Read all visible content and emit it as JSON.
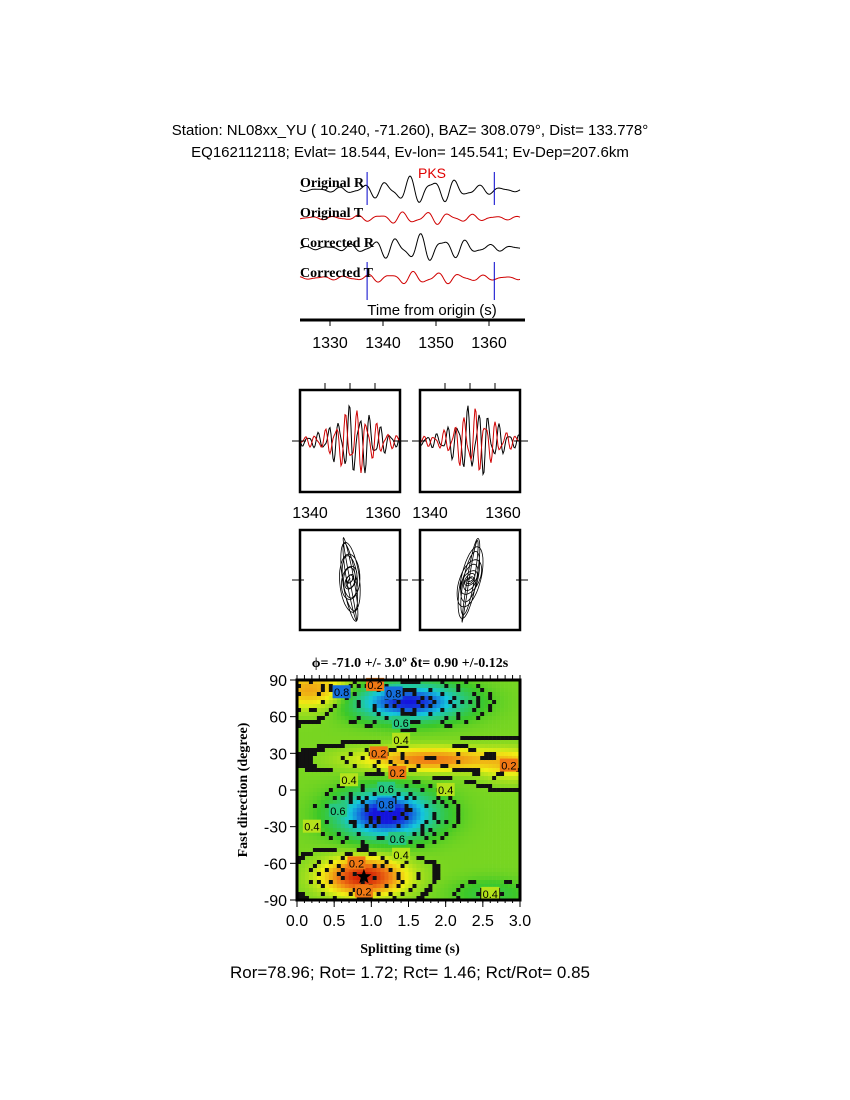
{
  "header": {
    "line1": "Station: NL08xx_YU (  10.240,  -71.260), BAZ=  308.079°, Dist=  133.778°",
    "line2": "EQ162112118; Evlat=  18.544, Ev-lon= 145.541; Ev-Dep=207.6km"
  },
  "colors": {
    "radial": "#000000",
    "transverse": "#d00000",
    "marker": "#0000cc",
    "phase": "#e00000"
  },
  "chart_data": [
    {
      "type": "line",
      "phase_label": "PKS",
      "traces": [
        "Original R",
        "Original T",
        "Corrected R",
        "Corrected T"
      ],
      "xlabel": "Time from origin (s)",
      "xticks": [
        1330,
        1340,
        1350,
        1360
      ],
      "xlim": [
        1324,
        1367
      ],
      "window_markers": [
        1337,
        1361
      ]
    },
    {
      "type": "line",
      "panel": "original waveforms R/T",
      "xticks": [
        1340,
        1360
      ]
    },
    {
      "type": "line",
      "panel": "corrected waveforms R/T",
      "xticks": [
        1340,
        1360
      ]
    },
    {
      "type": "scatter",
      "panel": "original particle motion"
    },
    {
      "type": "scatter",
      "panel": "corrected particle motion"
    },
    {
      "type": "heatmap",
      "title": "ϕ= -71.0 +/- 3.0º δt= 0.90 +/-0.12s",
      "xlabel": "Splitting time (s)",
      "ylabel": "Fast direction (degree)",
      "xlim": [
        0,
        3
      ],
      "ylim": [
        -90,
        90
      ],
      "xticks": [
        "0.0",
        "0.5",
        "1.0",
        "1.5",
        "2.0",
        "2.5",
        "3.0"
      ],
      "yticks": [
        "90",
        "60",
        "30",
        "0",
        "-30",
        "-60",
        "-90"
      ],
      "contour_labels": [
        "0.2",
        "0.4",
        "0.6",
        "0.8"
      ],
      "best_fit": {
        "phi": -71.0,
        "dt": 0.9
      },
      "colormap": "red-yellow-green-blue"
    }
  ],
  "footer": "Ror=78.96; Rot= 1.72; Rct= 1.46; Rct/Rot= 0.85"
}
